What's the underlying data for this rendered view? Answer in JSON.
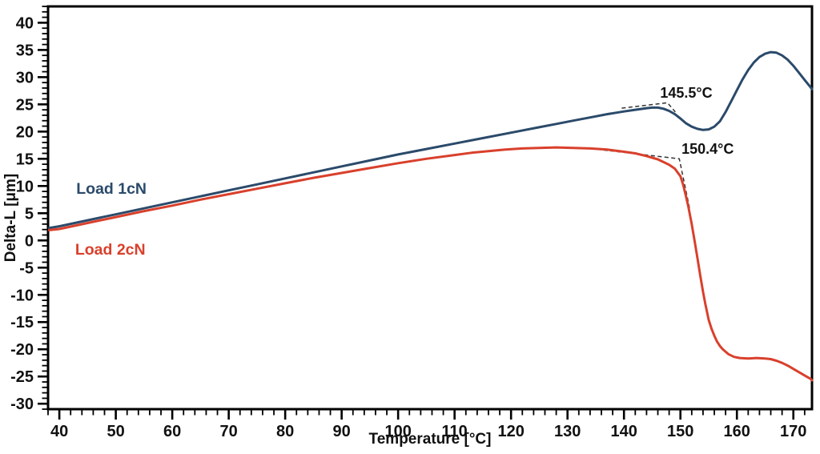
{
  "chart_data": {
    "type": "line",
    "title": "",
    "xlabel": "Temperature [°C]",
    "ylabel": "Delta-L [μm]",
    "xlim": [
      38.0,
      173.3
    ],
    "ylim": [
      -31.0,
      43.0
    ],
    "x_major_ticks": [
      40,
      50,
      60,
      70,
      80,
      90,
      100,
      110,
      120,
      130,
      140,
      150,
      160,
      170
    ],
    "x_minor_step": 2,
    "y_major_ticks": [
      -30,
      -25,
      -20,
      -15,
      -10,
      -5,
      0,
      5,
      10,
      15,
      20,
      25,
      30,
      35,
      40
    ],
    "y_minor_step": 1,
    "grid": false,
    "frame": true,
    "legend_position": "inside-left-on-curves",
    "colors": {
      "axis": "#000000",
      "tick_label": "#111111",
      "annotation_line": "#333333",
      "annotation_text": "#111111",
      "background": "#ffffff"
    },
    "series": [
      {
        "name": "Load 1cN",
        "color": "#2b4a6a",
        "label_pos": [
          43.0,
          9.6
        ],
        "points": [
          [
            38.2,
            2.3
          ],
          [
            40,
            2.6
          ],
          [
            45,
            3.7
          ],
          [
            50,
            4.8
          ],
          [
            55,
            5.9
          ],
          [
            60,
            7.0
          ],
          [
            65,
            8.1
          ],
          [
            70,
            9.2
          ],
          [
            75,
            10.3
          ],
          [
            80,
            11.4
          ],
          [
            85,
            12.5
          ],
          [
            90,
            13.6
          ],
          [
            95,
            14.7
          ],
          [
            100,
            15.8
          ],
          [
            105,
            16.8
          ],
          [
            110,
            17.8
          ],
          [
            115,
            18.8
          ],
          [
            120,
            19.8
          ],
          [
            125,
            20.8
          ],
          [
            128,
            21.4
          ],
          [
            131,
            22.0
          ],
          [
            134,
            22.6
          ],
          [
            137,
            23.2
          ],
          [
            140,
            23.7
          ],
          [
            142,
            24.0
          ],
          [
            144,
            24.3
          ],
          [
            145,
            24.4
          ],
          [
            146,
            24.4
          ],
          [
            147,
            24.2
          ],
          [
            148,
            23.8
          ],
          [
            149,
            23.2
          ],
          [
            150,
            22.4
          ],
          [
            151,
            21.5
          ],
          [
            152,
            20.9
          ],
          [
            153,
            20.5
          ],
          [
            154,
            20.3
          ],
          [
            155,
            20.4
          ],
          [
            156,
            20.9
          ],
          [
            157,
            21.9
          ],
          [
            158,
            23.6
          ],
          [
            159,
            25.6
          ],
          [
            160,
            27.6
          ],
          [
            161,
            29.6
          ],
          [
            162,
            31.3
          ],
          [
            163,
            32.7
          ],
          [
            164,
            33.7
          ],
          [
            165,
            34.3
          ],
          [
            166,
            34.6
          ],
          [
            167,
            34.5
          ],
          [
            168,
            34.0
          ],
          [
            169,
            33.2
          ],
          [
            170,
            32.1
          ],
          [
            171,
            30.8
          ],
          [
            172,
            29.5
          ],
          [
            173,
            28.2
          ],
          [
            173.3,
            27.8
          ]
        ]
      },
      {
        "name": "Load 2cN",
        "color": "#d9402c",
        "label_pos": [
          42.8,
          -1.6
        ],
        "points": [
          [
            38.2,
            1.9
          ],
          [
            40,
            2.1
          ],
          [
            45,
            3.2
          ],
          [
            50,
            4.3
          ],
          [
            55,
            5.4
          ],
          [
            60,
            6.4
          ],
          [
            65,
            7.5
          ],
          [
            70,
            8.5
          ],
          [
            75,
            9.5
          ],
          [
            80,
            10.5
          ],
          [
            85,
            11.5
          ],
          [
            90,
            12.4
          ],
          [
            95,
            13.3
          ],
          [
            100,
            14.2
          ],
          [
            105,
            15.0
          ],
          [
            110,
            15.7
          ],
          [
            113,
            16.1
          ],
          [
            116,
            16.4
          ],
          [
            119,
            16.7
          ],
          [
            122,
            16.9
          ],
          [
            125,
            17.0
          ],
          [
            128,
            17.1
          ],
          [
            131,
            17.0
          ],
          [
            134,
            16.9
          ],
          [
            137,
            16.7
          ],
          [
            140,
            16.3
          ],
          [
            142,
            16.0
          ],
          [
            144,
            15.5
          ],
          [
            146,
            14.9
          ],
          [
            147,
            14.4
          ],
          [
            148,
            13.9
          ],
          [
            149,
            13.2
          ],
          [
            150,
            11.8
          ],
          [
            150.5,
            10.2
          ],
          [
            151,
            8.0
          ],
          [
            151.4,
            6.2
          ],
          [
            152,
            3.0
          ],
          [
            152.5,
            0.0
          ],
          [
            153,
            -3.2
          ],
          [
            153.5,
            -6.4
          ],
          [
            154,
            -9.4
          ],
          [
            154.4,
            -11.6
          ],
          [
            155,
            -14.6
          ],
          [
            155.5,
            -16.2
          ],
          [
            156,
            -17.5
          ],
          [
            156.5,
            -18.6
          ],
          [
            157,
            -19.4
          ],
          [
            157.5,
            -20.0
          ],
          [
            158.5,
            -20.9
          ],
          [
            159.5,
            -21.4
          ],
          [
            160.5,
            -21.6
          ],
          [
            162,
            -21.7
          ],
          [
            163.5,
            -21.6
          ],
          [
            165,
            -21.7
          ],
          [
            166,
            -21.8
          ],
          [
            167,
            -22.1
          ],
          [
            168,
            -22.5
          ],
          [
            169,
            -23.0
          ],
          [
            170,
            -23.6
          ],
          [
            171,
            -24.2
          ],
          [
            172,
            -24.8
          ],
          [
            173,
            -25.4
          ],
          [
            173.3,
            -25.7
          ]
        ]
      }
    ],
    "annotations": [
      {
        "label": "145.5°C",
        "text_pos": [
          146.4,
          26.2
        ],
        "points": [
          [
            139.6,
            24.3
          ],
          [
            147.7,
            25.3
          ],
          [
            149.1,
            23.6
          ]
        ]
      },
      {
        "label": "150.4°C",
        "text_pos": [
          150.2,
          15.9
        ],
        "points": [
          [
            134.0,
            16.9
          ],
          [
            149.8,
            15.0
          ],
          [
            151.6,
            6.0
          ]
        ]
      }
    ]
  }
}
